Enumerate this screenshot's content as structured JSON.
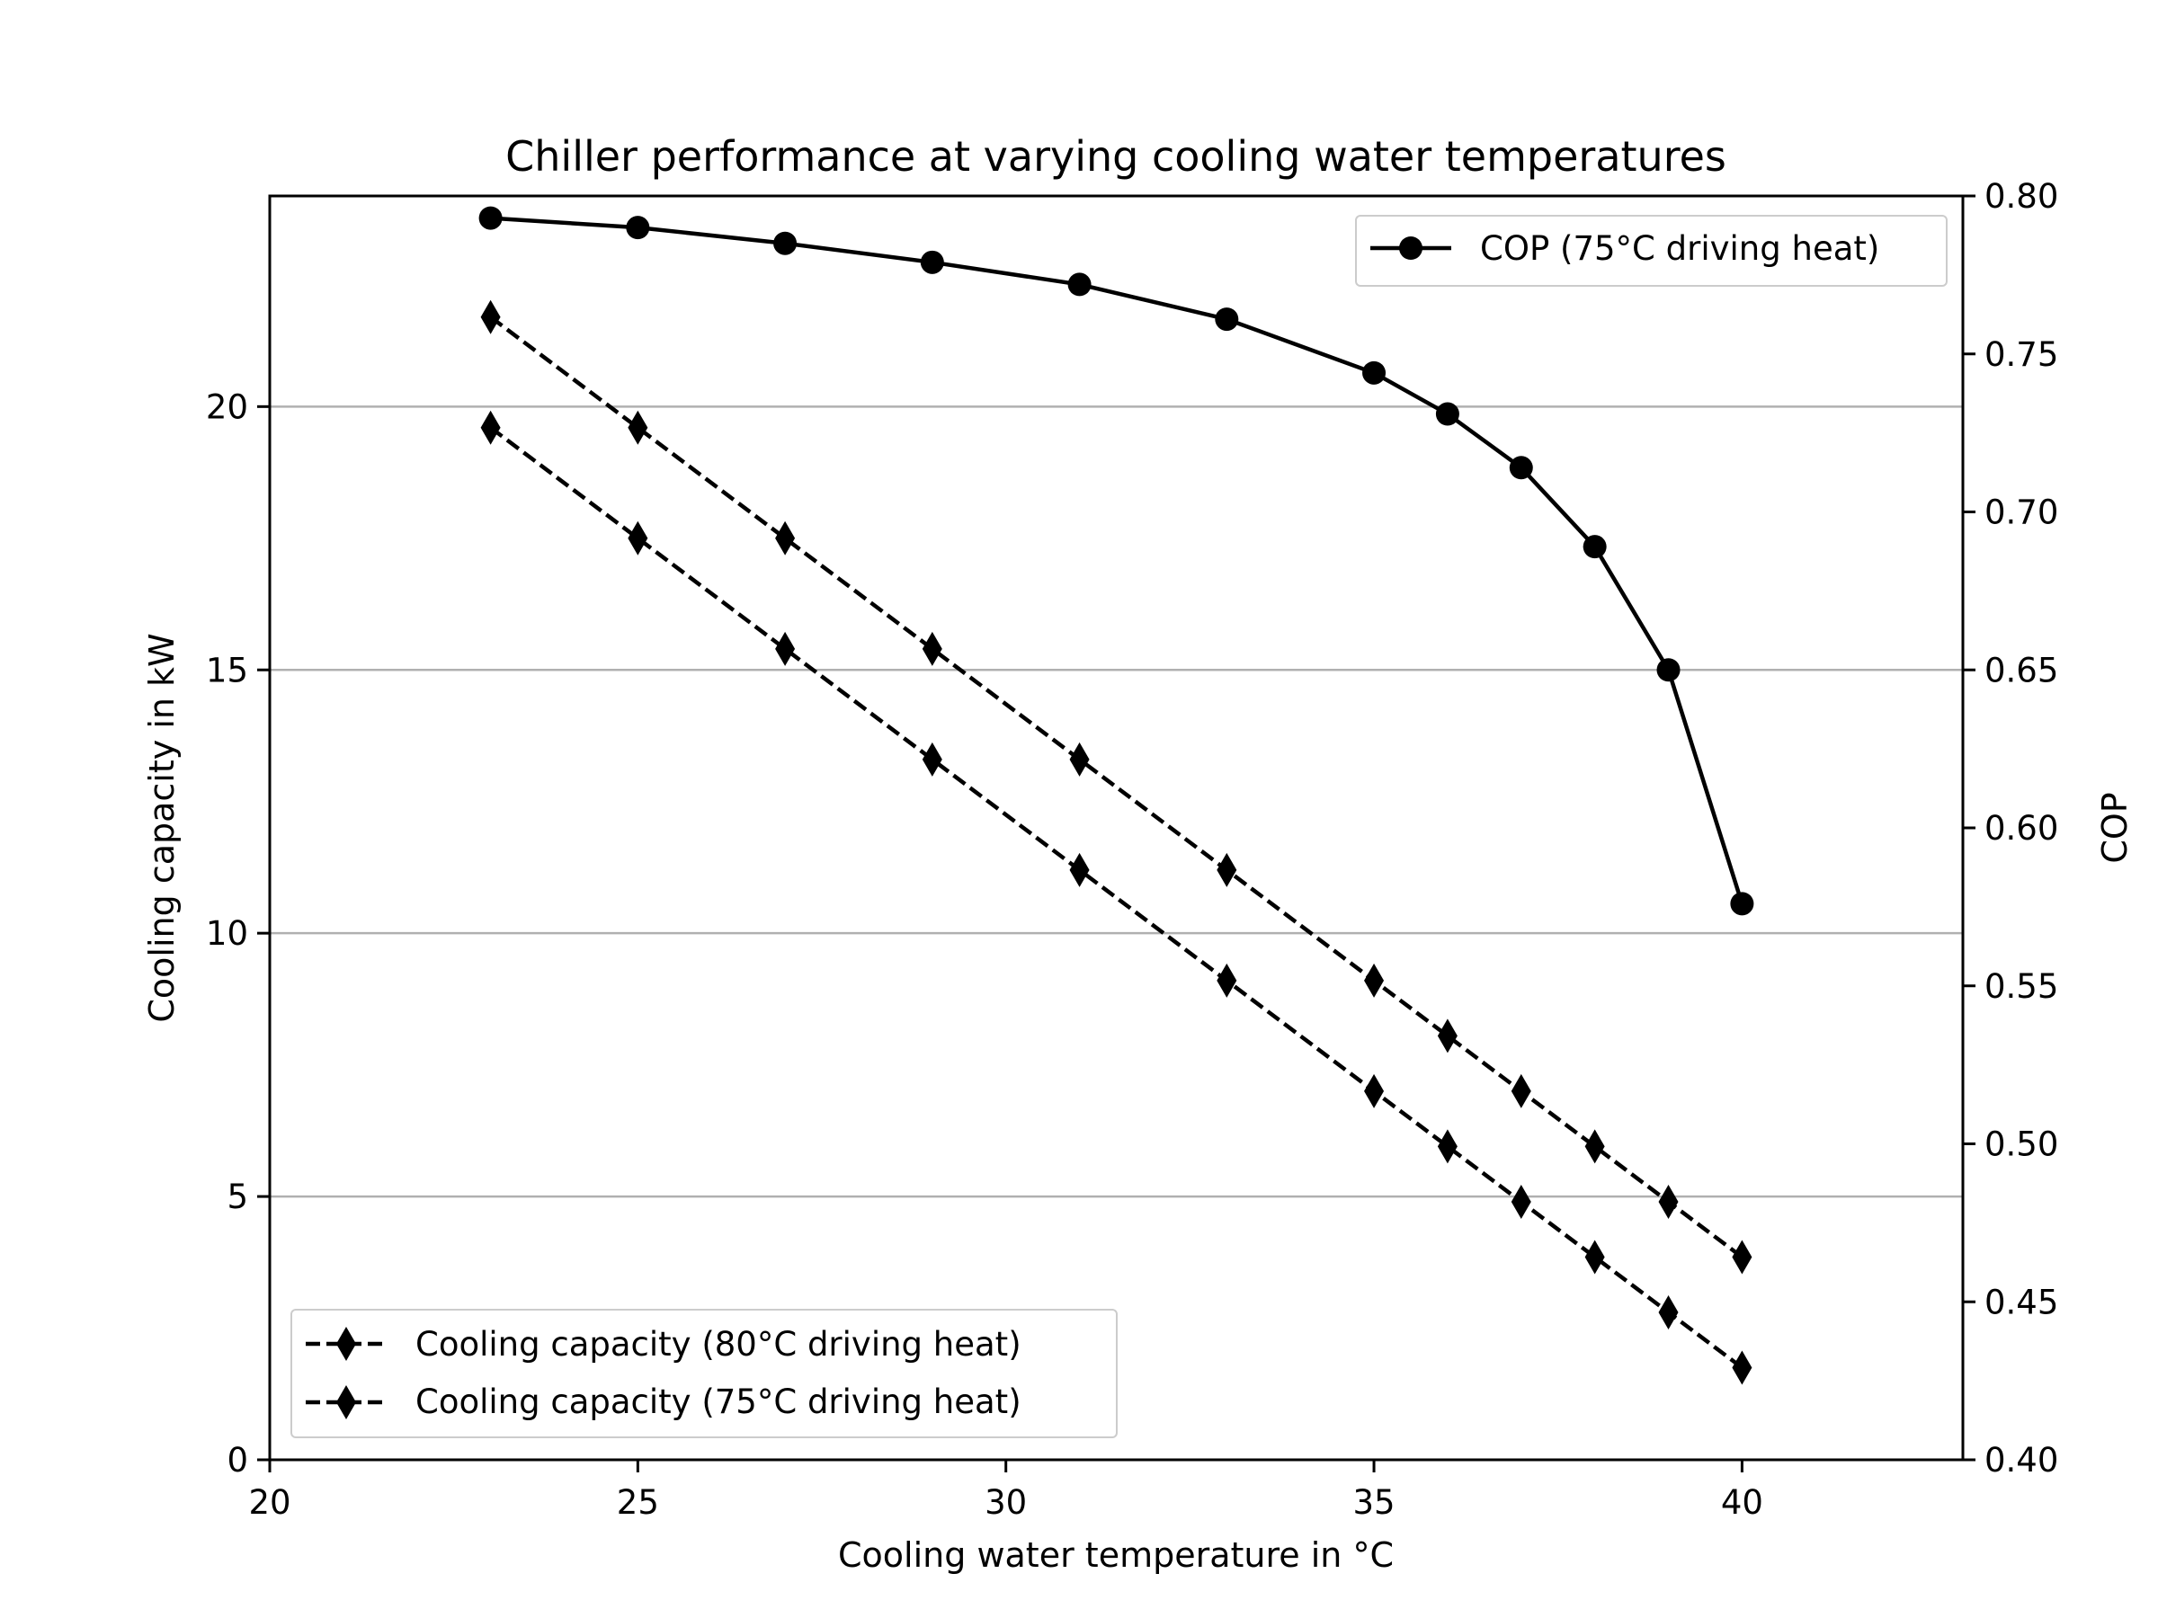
{
  "chart_data": {
    "type": "line",
    "title": "Chiller performance at varying cooling water temperatures",
    "xlabel": "Cooling water temperature in °C",
    "ylabel_left": "Cooling capacity in kW",
    "ylabel_right": "COP",
    "xlim": [
      20,
      43
    ],
    "ylim_left": [
      0,
      24
    ],
    "ylim_right": [
      0.4,
      0.8
    ],
    "grid": "horizontal (left axis)",
    "x_ticks": [
      "20",
      "25",
      "30",
      "35",
      "40"
    ],
    "y_left_ticks": [
      "0",
      "5",
      "10",
      "15",
      "20"
    ],
    "y_right_ticks": [
      "0.40",
      "0.45",
      "0.50",
      "0.55",
      "0.60",
      "0.65",
      "0.70",
      "0.75",
      "0.80"
    ],
    "x": [
      23,
      25,
      27,
      29,
      31,
      33,
      35,
      36,
      37,
      38,
      39,
      40
    ],
    "series": [
      {
        "name": "COP (75°C driving heat)",
        "axis": "right",
        "marker": "circle",
        "linestyle": "solid",
        "color": "#000000",
        "values": [
          0.793,
          0.79,
          0.785,
          0.779,
          0.772,
          0.761,
          0.744,
          0.731,
          0.714,
          0.689,
          0.65,
          0.576
        ]
      },
      {
        "name": "Cooling capacity (80°C driving heat)",
        "axis": "left",
        "marker": "diamond",
        "linestyle": "dashed",
        "color": "#000000",
        "values": [
          21.7,
          19.6,
          17.5,
          15.4,
          13.3,
          11.2,
          9.1,
          8.05,
          7.0,
          5.95,
          4.9,
          3.85
        ]
      },
      {
        "name": "Cooling capacity (75°C driving heat)",
        "axis": "left",
        "marker": "diamond",
        "linestyle": "dashed",
        "color": "#000000",
        "values": [
          19.6,
          17.5,
          15.4,
          13.3,
          11.2,
          9.1,
          7.0,
          5.95,
          4.9,
          3.85,
          2.8,
          1.75
        ]
      }
    ],
    "legends": [
      {
        "placement": "top-right",
        "entries": [
          "COP (75°C driving heat)"
        ]
      },
      {
        "placement": "bottom-left",
        "entries": [
          "Cooling capacity (80°C driving heat)",
          "Cooling capacity (75°C driving heat)"
        ]
      }
    ]
  }
}
